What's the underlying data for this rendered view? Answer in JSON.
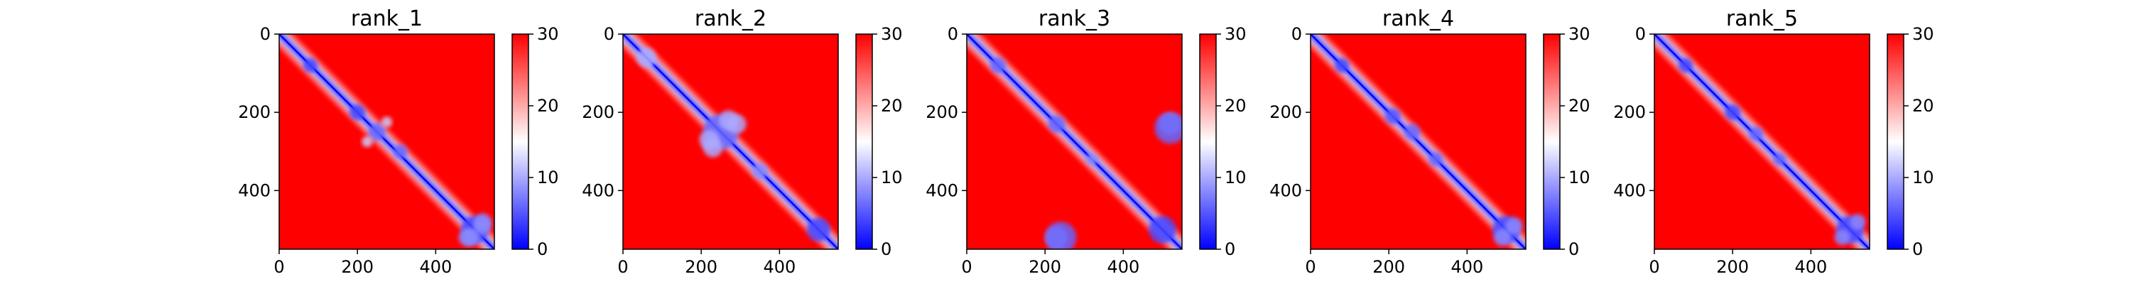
{
  "chart_data": [
    {
      "type": "heatmap",
      "title": "rank_1",
      "xlim": [
        0,
        550
      ],
      "ylim": [
        550,
        0
      ],
      "xticks": [
        0,
        200,
        400
      ],
      "xtick_labels": [
        "0",
        "200",
        "400"
      ],
      "yticks": [
        0,
        200,
        400
      ],
      "ytick_labels": [
        "0",
        "200",
        "400"
      ],
      "colorbar": {
        "min": 0,
        "max": 30,
        "ticks": [
          0,
          10,
          20,
          30
        ],
        "tick_labels": [
          "0",
          "10",
          "20",
          "30"
        ],
        "colormap": "bwr"
      },
      "blobs": [
        {
          "x": 80,
          "y": 80,
          "r": 18,
          "v": 4
        },
        {
          "x": 200,
          "y": 200,
          "r": 20,
          "v": 4
        },
        {
          "x": 250,
          "y": 250,
          "r": 22,
          "v": 6
        },
        {
          "x": 275,
          "y": 225,
          "r": 14,
          "v": 12
        },
        {
          "x": 310,
          "y": 300,
          "r": 18,
          "v": 6
        },
        {
          "x": 500,
          "y": 500,
          "r": 35,
          "v": 4
        },
        {
          "x": 490,
          "y": 520,
          "r": 22,
          "v": 8
        },
        {
          "x": 520,
          "y": 480,
          "r": 22,
          "v": 8
        }
      ]
    },
    {
      "type": "heatmap",
      "title": "rank_2",
      "xlim": [
        0,
        550
      ],
      "ylim": [
        550,
        0
      ],
      "xticks": [
        0,
        200,
        400
      ],
      "xtick_labels": [
        "0",
        "200",
        "400"
      ],
      "yticks": [
        0,
        200,
        400
      ],
      "ytick_labels": [
        "0",
        "200",
        "400"
      ],
      "colorbar": {
        "min": 0,
        "max": 30,
        "ticks": [
          0,
          10,
          20,
          30
        ],
        "tick_labels": [
          "0",
          "10",
          "20",
          "30"
        ],
        "colormap": "bwr"
      },
      "blobs": [
        {
          "x": 60,
          "y": 60,
          "r": 25,
          "v": 10
        },
        {
          "x": 250,
          "y": 250,
          "r": 45,
          "v": 6
        },
        {
          "x": 220,
          "y": 270,
          "r": 25,
          "v": 10
        },
        {
          "x": 290,
          "y": 230,
          "r": 25,
          "v": 10
        },
        {
          "x": 350,
          "y": 350,
          "r": 20,
          "v": 8
        },
        {
          "x": 500,
          "y": 500,
          "r": 30,
          "v": 4
        }
      ]
    },
    {
      "type": "heatmap",
      "title": "rank_3",
      "xlim": [
        0,
        550
      ],
      "ylim": [
        550,
        0
      ],
      "xticks": [
        0,
        200,
        400
      ],
      "xtick_labels": [
        "0",
        "200",
        "400"
      ],
      "yticks": [
        0,
        200,
        400
      ],
      "ytick_labels": [
        "0",
        "200",
        "400"
      ],
      "colorbar": {
        "min": 0,
        "max": 30,
        "ticks": [
          0,
          10,
          20,
          30
        ],
        "tick_labels": [
          "0",
          "10",
          "20",
          "30"
        ],
        "colormap": "bwr"
      },
      "blobs": [
        {
          "x": 80,
          "y": 80,
          "r": 20,
          "v": 6
        },
        {
          "x": 230,
          "y": 230,
          "r": 22,
          "v": 6
        },
        {
          "x": 520,
          "y": 230,
          "r": 28,
          "v": 10
        },
        {
          "x": 240,
          "y": 520,
          "r": 40,
          "v": 6
        },
        {
          "x": 320,
          "y": 320,
          "r": 15,
          "v": 8
        },
        {
          "x": 500,
          "y": 500,
          "r": 35,
          "v": 4
        }
      ]
    },
    {
      "type": "heatmap",
      "title": "rank_4",
      "xlim": [
        0,
        550
      ],
      "ylim": [
        550,
        0
      ],
      "xticks": [
        0,
        200,
        400
      ],
      "xtick_labels": [
        "0",
        "200",
        "400"
      ],
      "yticks": [
        0,
        200,
        400
      ],
      "ytick_labels": [
        "0",
        "200",
        "400"
      ],
      "colorbar": {
        "min": 0,
        "max": 30,
        "ticks": [
          0,
          10,
          20,
          30
        ],
        "tick_labels": [
          "0",
          "10",
          "20",
          "30"
        ],
        "colormap": "bwr"
      },
      "blobs": [
        {
          "x": 80,
          "y": 80,
          "r": 18,
          "v": 4
        },
        {
          "x": 210,
          "y": 210,
          "r": 20,
          "v": 5
        },
        {
          "x": 260,
          "y": 250,
          "r": 20,
          "v": 6
        },
        {
          "x": 320,
          "y": 320,
          "r": 18,
          "v": 6
        },
        {
          "x": 500,
          "y": 500,
          "r": 35,
          "v": 4
        },
        {
          "x": 490,
          "y": 520,
          "r": 22,
          "v": 8
        }
      ]
    },
    {
      "type": "heatmap",
      "title": "rank_5",
      "xlim": [
        0,
        550
      ],
      "ylim": [
        550,
        0
      ],
      "xticks": [
        0,
        200,
        400
      ],
      "xtick_labels": [
        "0",
        "200",
        "400"
      ],
      "yticks": [
        0,
        200,
        400
      ],
      "ytick_labels": [
        "0",
        "200",
        "400"
      ],
      "colorbar": {
        "min": 0,
        "max": 30,
        "ticks": [
          0,
          10,
          20,
          30
        ],
        "tick_labels": [
          "0",
          "10",
          "20",
          "30"
        ],
        "colormap": "bwr"
      },
      "blobs": [
        {
          "x": 80,
          "y": 80,
          "r": 18,
          "v": 4
        },
        {
          "x": 200,
          "y": 200,
          "r": 20,
          "v": 4
        },
        {
          "x": 260,
          "y": 255,
          "r": 18,
          "v": 6
        },
        {
          "x": 320,
          "y": 320,
          "r": 16,
          "v": 6
        },
        {
          "x": 500,
          "y": 500,
          "r": 35,
          "v": 4
        },
        {
          "x": 480,
          "y": 520,
          "r": 20,
          "v": 8
        }
      ]
    }
  ]
}
